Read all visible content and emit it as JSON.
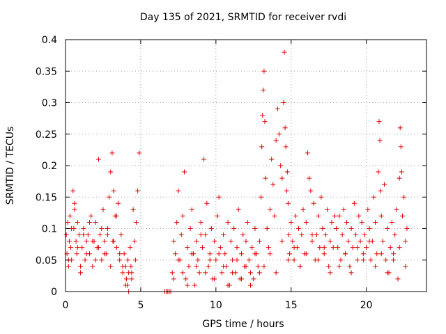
{
  "chart_data": {
    "type": "scatter",
    "title": "Day 135 of 2021, SRMTID for receiver rvdi",
    "xlabel": "GPS time / hours",
    "ylabel": "SRMTID / TECUs",
    "xlim": [
      0,
      24
    ],
    "ylim": [
      0,
      0.4
    ],
    "xticks": [
      "0",
      "5",
      "10",
      "15",
      "20"
    ],
    "xtick_values": [
      0,
      5,
      10,
      15,
      20
    ],
    "yticks": [
      "0",
      "0.05",
      "0.1",
      "0.15",
      "0.2",
      "0.25",
      "0.3",
      "0.35",
      "0.4"
    ],
    "ytick_values": [
      0,
      0.05,
      0.1,
      0.15,
      0.2,
      0.25,
      0.3,
      0.35,
      0.4
    ],
    "grid": true,
    "marker": "+",
    "marker_color": "#e00000",
    "x": [
      0.05,
      0.1,
      0.15,
      0.2,
      0.25,
      0.3,
      0.35,
      0.4,
      0.5,
      0.55,
      0.6,
      0.7,
      0.75,
      0.8,
      0.9,
      1.0,
      1.1,
      1.2,
      1.3,
      1.4,
      1.5,
      1.6,
      1.7,
      1.8,
      1.9,
      2.0,
      2.1,
      2.2,
      2.3,
      2.4,
      2.5,
      2.6,
      2.7,
      2.8,
      2.9,
      3.0,
      3.1,
      3.15,
      3.2,
      3.3,
      3.4,
      3.5,
      3.6,
      3.7,
      3.8,
      3.9,
      4.0,
      4.05,
      4.1,
      4.15,
      4.2,
      4.3,
      4.35,
      4.4,
      4.5,
      4.6,
      4.65,
      4.7,
      4.8,
      4.9,
      0.2,
      0.4,
      0.6,
      0.8,
      1.0,
      1.2,
      1.4,
      1.6,
      1.8,
      2.0,
      2.2,
      2.4,
      2.6,
      2.8,
      3.0,
      3.2,
      3.4,
      3.6,
      3.8,
      4.0,
      4.2,
      4.4,
      6.6,
      6.7,
      6.8,
      6.9,
      7.0,
      7.1,
      7.2,
      7.3,
      7.4,
      7.5,
      7.6,
      7.7,
      7.8,
      7.9,
      8.0,
      8.1,
      8.2,
      8.3,
      8.4,
      8.5,
      8.6,
      8.7,
      8.8,
      8.9,
      9.0,
      9.1,
      9.2,
      9.3,
      9.4,
      9.5,
      9.6,
      9.7,
      9.8,
      9.9,
      10.0,
      10.1,
      10.2,
      10.3,
      10.4,
      10.5,
      10.6,
      10.7,
      10.8,
      10.9,
      11.0,
      11.1,
      11.2,
      11.3,
      11.4,
      11.5,
      11.6,
      11.7,
      11.8,
      11.9,
      12.0,
      12.1,
      12.2,
      12.3,
      12.4,
      12.5,
      12.6,
      12.7,
      12.8,
      12.9,
      7.2,
      7.5,
      7.8,
      8.1,
      8.4,
      8.7,
      9.0,
      9.3,
      9.6,
      9.9,
      10.2,
      10.5,
      10.8,
      11.1,
      11.4,
      11.7,
      12.0,
      12.3,
      12.6,
      12.9,
      13.0,
      13.05,
      13.1,
      13.15,
      13.2,
      13.25,
      13.3,
      13.4,
      13.5,
      13.6,
      13.7,
      13.8,
      13.9,
      14.0,
      14.1,
      14.2,
      14.3,
      14.4,
      14.5,
      14.55,
      14.6,
      14.65,
      14.7,
      14.75,
      14.8,
      14.85,
      14.9,
      15.0,
      15.1,
      15.2,
      15.3,
      15.4,
      15.5,
      15.6,
      15.7,
      15.8,
      15.9,
      16.0,
      16.1,
      16.2,
      16.3,
      16.4,
      16.5,
      16.6,
      16.7,
      16.8,
      16.9,
      17.0,
      17.1,
      17.2,
      17.3,
      17.4,
      17.5,
      17.6,
      17.7,
      17.8,
      17.9,
      13.2,
      13.6,
      14.0,
      14.4,
      14.8,
      15.2,
      15.6,
      16.0,
      16.4,
      16.8,
      17.2,
      17.6,
      18.0,
      18.1,
      18.2,
      18.3,
      18.4,
      18.5,
      18.6,
      18.7,
      18.8,
      18.9,
      19.0,
      19.1,
      19.2,
      19.3,
      19.4,
      19.5,
      19.6,
      19.7,
      19.8,
      19.9,
      20.0,
      20.1,
      20.2,
      20.3,
      20.4,
      20.5,
      20.6,
      20.7,
      20.8,
      20.85,
      20.9,
      20.95,
      21.0,
      21.1,
      21.2,
      21.3,
      21.4,
      21.5,
      21.6,
      21.7,
      21.8,
      21.9,
      22.0,
      22.1,
      22.2,
      22.25,
      22.3,
      22.35,
      22.4,
      22.5,
      22.6,
      22.7,
      18.2,
      18.6,
      19.0,
      19.4,
      19.8,
      20.2,
      20.6,
      21.0,
      21.4,
      21.8,
      22.2,
      22.6
    ],
    "y": [
      0.09,
      0.06,
      0.11,
      0.04,
      0.08,
      0.12,
      0.07,
      0.05,
      0.16,
      0.1,
      0.14,
      0.08,
      0.06,
      0.11,
      0.09,
      0.03,
      0.07,
      0.1,
      0.05,
      0.08,
      0.09,
      0.06,
      0.12,
      0.04,
      0.08,
      0.11,
      0.07,
      0.21,
      0.09,
      0.05,
      0.13,
      0.08,
      0.06,
      0.1,
      0.15,
      0.19,
      0.22,
      0.08,
      0.16,
      0.12,
      0.07,
      0.14,
      0.05,
      0.09,
      0.03,
      0.06,
      0.04,
      0.02,
      0.01,
      0.05,
      0.03,
      0.07,
      0.04,
      0.02,
      0.13,
      0.08,
      0.05,
      0.11,
      0.16,
      0.22,
      0.05,
      0.1,
      0.13,
      0.07,
      0.04,
      0.09,
      0.06,
      0.11,
      0.08,
      0.05,
      0.07,
      0.1,
      0.06,
      0.09,
      0.04,
      0.08,
      0.12,
      0.06,
      0.04,
      0.01,
      0.0,
      0.03,
      0.0,
      0.0,
      0.0,
      0.0,
      0.0,
      0.03,
      0.08,
      0.06,
      0.11,
      0.16,
      0.05,
      0.09,
      0.12,
      0.19,
      0.02,
      0.07,
      0.04,
      0.1,
      0.13,
      0.06,
      0.01,
      0.08,
      0.05,
      0.03,
      0.11,
      0.07,
      0.21,
      0.09,
      0.14,
      0.04,
      0.06,
      0.1,
      0.02,
      0.08,
      0.05,
      0.12,
      0.15,
      0.07,
      0.03,
      0.09,
      0.06,
      0.04,
      0.11,
      0.01,
      0.08,
      0.05,
      0.1,
      0.03,
      0.07,
      0.13,
      0.02,
      0.06,
      0.09,
      0.04,
      0.08,
      0.11,
      0.05,
      0.03,
      0.07,
      0.02,
      0.1,
      0.06,
      0.04,
      0.08,
      0.02,
      0.05,
      0.03,
      0.01,
      0.06,
      0.04,
      0.09,
      0.03,
      0.05,
      0.02,
      0.06,
      0.04,
      0.01,
      0.03,
      0.05,
      0.02,
      0.04,
      0.01,
      0.06,
      0.03,
      0.15,
      0.23,
      0.28,
      0.32,
      0.35,
      0.27,
      0.18,
      0.1,
      0.07,
      0.13,
      0.21,
      0.17,
      0.12,
      0.24,
      0.29,
      0.25,
      0.2,
      0.18,
      0.3,
      0.38,
      0.26,
      0.23,
      0.16,
      0.19,
      0.14,
      0.09,
      0.06,
      0.11,
      0.08,
      0.05,
      0.12,
      0.07,
      0.1,
      0.04,
      0.09,
      0.13,
      0.06,
      0.11,
      0.22,
      0.18,
      0.16,
      0.08,
      0.14,
      0.05,
      0.09,
      0.12,
      0.07,
      0.15,
      0.1,
      0.06,
      0.09,
      0.13,
      0.04,
      0.08,
      0.11,
      0.07,
      0.12,
      0.04,
      0.06,
      0.03,
      0.08,
      0.05,
      0.07,
      0.04,
      0.06,
      0.09,
      0.05,
      0.07,
      0.03,
      0.1,
      0.07,
      0.12,
      0.05,
      0.09,
      0.13,
      0.06,
      0.11,
      0.08,
      0.04,
      0.1,
      0.07,
      0.14,
      0.09,
      0.05,
      0.12,
      0.08,
      0.11,
      0.06,
      0.09,
      0.07,
      0.13,
      0.1,
      0.05,
      0.08,
      0.15,
      0.11,
      0.06,
      0.19,
      0.27,
      0.24,
      0.16,
      0.12,
      0.08,
      0.17,
      0.05,
      0.1,
      0.03,
      0.07,
      0.11,
      0.06,
      0.09,
      0.13,
      0.02,
      0.18,
      0.26,
      0.23,
      0.19,
      0.12,
      0.15,
      0.08,
      0.1,
      0.04,
      0.06,
      0.03,
      0.07,
      0.05,
      0.08,
      0.04,
      0.06,
      0.03,
      0.05,
      0.07,
      0.04
    ]
  }
}
